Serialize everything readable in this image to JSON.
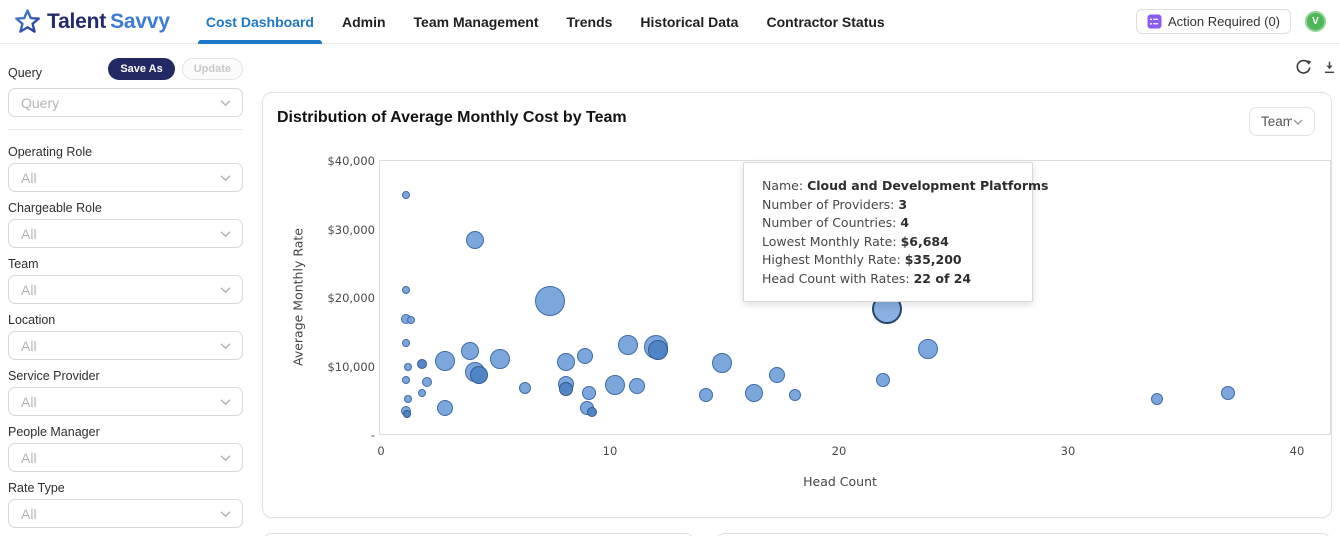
{
  "header": {
    "brand": {
      "name_primary": "Talent",
      "name_secondary": "Savvy"
    },
    "nav": [
      {
        "label": "Cost Dashboard",
        "active": true
      },
      {
        "label": "Admin",
        "active": false
      },
      {
        "label": "Team Management",
        "active": false
      },
      {
        "label": "Trends",
        "active": false
      },
      {
        "label": "Historical Data",
        "active": false
      },
      {
        "label": "Contractor Status",
        "active": false
      }
    ],
    "action_required": {
      "label": "Action Required (0)",
      "icon": "task-list-icon",
      "icon_color": "#8a5cf5"
    },
    "avatar": {
      "initial": "V",
      "color": "#4eb757"
    }
  },
  "sidebar": {
    "query_label": "Query",
    "save_as_label": "Save As",
    "update_label": "Update",
    "query_placeholder": "Query",
    "filters": [
      {
        "label": "Operating Role",
        "value": "All"
      },
      {
        "label": "Chargeable Role",
        "value": "All"
      },
      {
        "label": "Team",
        "value": "All"
      },
      {
        "label": "Location",
        "value": "All"
      },
      {
        "label": "Service Provider",
        "value": "All"
      },
      {
        "label": "People Manager",
        "value": "All"
      },
      {
        "label": "Rate Type",
        "value": "All"
      }
    ]
  },
  "toolbar_icons": {
    "refresh": "refresh-icon",
    "download": "download-icon"
  },
  "card": {
    "title": "Distribution of Average Monthly Cost by Team",
    "group_by_value": "Team"
  },
  "tooltip": {
    "rows": [
      {
        "label": "Name",
        "value": "Cloud and Development Platforms"
      },
      {
        "label": "Number of Providers",
        "value": "3"
      },
      {
        "label": "Number of Countries",
        "value": "4"
      },
      {
        "label": "Lowest Monthly Rate",
        "value": "$6,684"
      },
      {
        "label": "Highest Monthly Rate",
        "value": "$35,200"
      },
      {
        "label": "Head Count with Rates",
        "value": "22 of 24"
      }
    ]
  },
  "chart_data": {
    "type": "scatter",
    "title": "Distribution of Average Monthly Cost by Team",
    "xlabel": "Head Count",
    "ylabel": "Average Monthly Rate",
    "xlim": [
      0,
      40
    ],
    "ylim": [
      0,
      40000
    ],
    "x_ticks": [
      0,
      10,
      20,
      30,
      40
    ],
    "y_tick_values": [
      40000,
      30000,
      20000,
      10000,
      0
    ],
    "y_tick_labels": [
      "$40,000",
      "$30,000",
      "$20,000",
      "$10,000",
      "-"
    ],
    "grid": false,
    "legend_position": "none",
    "colors": {
      "bubble_fill": "#71a0da",
      "bubble_stroke": "#3e6ba8",
      "bubble_dark_fill": "#4d82c4",
      "highlight_stroke": "#24466e",
      "accent": "#1e78c8"
    },
    "highlighted_team": "Cloud and Development Platforms",
    "points": [
      {
        "hc": 1.1,
        "rate": 35000,
        "r": 4
      },
      {
        "hc": 4.1,
        "rate": 28400,
        "r": 9
      },
      {
        "hc": 1.1,
        "rate": 21200,
        "r": 4
      },
      {
        "hc": 7.4,
        "rate": 19600,
        "r": 15
      },
      {
        "hc": 22.1,
        "rate": 18400,
        "r": 15,
        "s": "hl"
      },
      {
        "hc": 1.1,
        "rate": 16900,
        "r": 5
      },
      {
        "hc": 1.3,
        "rate": 16800,
        "r": 4
      },
      {
        "hc": 1.1,
        "rate": 13500,
        "r": 4
      },
      {
        "hc": 10.8,
        "rate": 13100,
        "r": 10
      },
      {
        "hc": 12.0,
        "rate": 12800,
        "r": 12
      },
      {
        "hc": 12.1,
        "rate": 12400,
        "r": 10,
        "s": "dark"
      },
      {
        "hc": 23.9,
        "rate": 12500,
        "r": 10
      },
      {
        "hc": 3.9,
        "rate": 12300,
        "r": 9
      },
      {
        "hc": 8.9,
        "rate": 11500,
        "r": 8
      },
      {
        "hc": 5.2,
        "rate": 11100,
        "r": 10
      },
      {
        "hc": 2.8,
        "rate": 10800,
        "r": 10
      },
      {
        "hc": 8.1,
        "rate": 10600,
        "r": 9
      },
      {
        "hc": 14.9,
        "rate": 10500,
        "r": 10
      },
      {
        "hc": 1.8,
        "rate": 10400,
        "r": 5,
        "s": "dark"
      },
      {
        "hc": 1.2,
        "rate": 10000,
        "r": 4
      },
      {
        "hc": 4.1,
        "rate": 9200,
        "r": 10
      },
      {
        "hc": 4.3,
        "rate": 8800,
        "r": 9,
        "s": "dark"
      },
      {
        "hc": 17.3,
        "rate": 8700,
        "r": 8
      },
      {
        "hc": 21.9,
        "rate": 8000,
        "r": 7
      },
      {
        "hc": 1.1,
        "rate": 8000,
        "r": 4
      },
      {
        "hc": 2.0,
        "rate": 7700,
        "r": 5
      },
      {
        "hc": 8.1,
        "rate": 7400,
        "r": 8
      },
      {
        "hc": 10.2,
        "rate": 7300,
        "r": 10
      },
      {
        "hc": 11.2,
        "rate": 7100,
        "r": 8
      },
      {
        "hc": 6.3,
        "rate": 6800,
        "r": 6
      },
      {
        "hc": 8.1,
        "rate": 6700,
        "r": 7,
        "s": "dark"
      },
      {
        "hc": 9.1,
        "rate": 6200,
        "r": 7
      },
      {
        "hc": 37.0,
        "rate": 6200,
        "r": 7
      },
      {
        "hc": 16.3,
        "rate": 6100,
        "r": 9
      },
      {
        "hc": 1.8,
        "rate": 6100,
        "r": 4
      },
      {
        "hc": 14.2,
        "rate": 5800,
        "r": 7
      },
      {
        "hc": 18.1,
        "rate": 5800,
        "r": 6
      },
      {
        "hc": 1.2,
        "rate": 5300,
        "r": 4
      },
      {
        "hc": 33.9,
        "rate": 5300,
        "r": 6
      },
      {
        "hc": 9.0,
        "rate": 3900,
        "r": 7
      },
      {
        "hc": 2.8,
        "rate": 3900,
        "r": 8
      },
      {
        "hc": 9.2,
        "rate": 3400,
        "r": 5,
        "s": "dark"
      },
      {
        "hc": 1.1,
        "rate": 3500,
        "r": 5
      },
      {
        "hc": 1.15,
        "rate": 3100,
        "r": 4,
        "s": "dark"
      }
    ]
  }
}
